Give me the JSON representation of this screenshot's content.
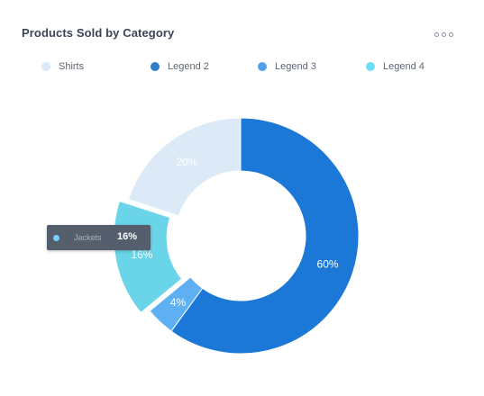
{
  "header": {
    "title": "Products Sold by Category",
    "menu_icon": "more-horizontal-icon"
  },
  "chart_data": {
    "type": "pie",
    "variant": "donut",
    "title": "Products Sold by Category",
    "legend_position": "top",
    "legend": [
      "Shirts",
      "Legend 2",
      "Legend 3",
      "Legend 4"
    ],
    "slices": [
      {
        "label": "60%",
        "value": 60,
        "color": "#1b78d6"
      },
      {
        "label": "4%",
        "value": 4,
        "color": "#5fb0f2"
      },
      {
        "label": "16%",
        "value": 16,
        "color": "#6ad4e8",
        "highlighted": true
      },
      {
        "label": "20%",
        "value": 20,
        "color": "#dceaf7"
      }
    ],
    "legend_colors": [
      "#dce9f6",
      "#2f7cc7",
      "#4ea2ec",
      "#6fdcf6"
    ]
  },
  "tooltip": {
    "label": "Jackets",
    "value": "16%",
    "color": "#6fd2ff"
  }
}
